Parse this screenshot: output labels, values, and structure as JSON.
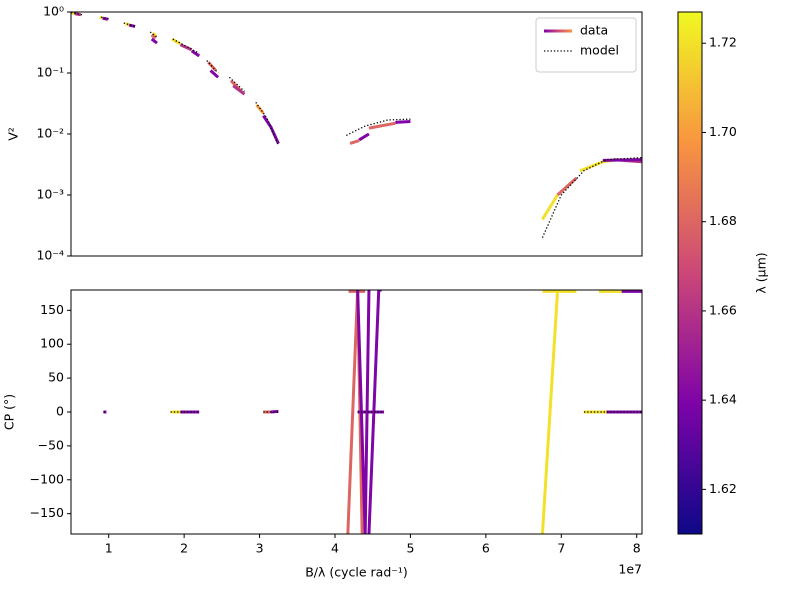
{
  "chart_data": [
    {
      "type": "line",
      "ylabel": "V²",
      "log_y": true,
      "legend": "upper right",
      "xlim": [
        0.5,
        8.07
      ],
      "ylim": [
        0.0001,
        1
      ],
      "yticks": [
        {
          "value": 0.0001,
          "label": "10⁻⁴"
        },
        {
          "value": 0.001,
          "label": "10⁻³"
        },
        {
          "value": 0.01,
          "label": "10⁻²"
        },
        {
          "value": 0.1,
          "label": "10⁻¹"
        },
        {
          "value": 1,
          "label": "10⁰"
        }
      ],
      "series": [
        {
          "name": "data",
          "linestyle": "solid",
          "segments": [
            {
              "wavelength": 1.72,
              "x": [
                0.5,
                0.55
              ],
              "values": [
                0.97,
                0.95
              ]
            },
            {
              "wavelength": 1.66,
              "x": [
                0.55,
                0.63
              ],
              "values": [
                0.94,
                0.9
              ]
            },
            {
              "wavelength": 1.72,
              "x": [
                0.88,
                0.92
              ],
              "values": [
                0.82,
                0.8
              ]
            },
            {
              "wavelength": 1.64,
              "x": [
                0.92,
                0.99
              ],
              "values": [
                0.79,
                0.76
              ]
            },
            {
              "wavelength": 1.72,
              "x": [
                1.22,
                1.27
              ],
              "values": [
                0.64,
                0.62
              ]
            },
            {
              "wavelength": 1.64,
              "x": [
                1.27,
                1.35
              ],
              "values": [
                0.61,
                0.58
              ]
            },
            {
              "wavelength": 1.72,
              "x": [
                1.58,
                1.63
              ],
              "values": [
                0.45,
                0.4
              ]
            },
            {
              "wavelength": 1.68,
              "x": [
                1.57,
                1.62
              ],
              "values": [
                0.42,
                0.37
              ]
            },
            {
              "wavelength": 1.64,
              "x": [
                1.57,
                1.64
              ],
              "values": [
                0.36,
                0.31
              ]
            },
            {
              "wavelength": 1.72,
              "x": [
                1.84,
                1.95
              ],
              "values": [
                0.36,
                0.3
              ]
            },
            {
              "wavelength": 1.66,
              "x": [
                1.95,
                2.1
              ],
              "values": [
                0.29,
                0.24
              ]
            },
            {
              "wavelength": 1.64,
              "x": [
                2.1,
                2.2
              ],
              "values": [
                0.23,
                0.19
              ]
            },
            {
              "wavelength": 1.68,
              "x": [
                2.32,
                2.42
              ],
              "values": [
                0.15,
                0.11
              ]
            },
            {
              "wavelength": 1.64,
              "x": [
                2.35,
                2.45
              ],
              "values": [
                0.11,
                0.085
              ]
            },
            {
              "wavelength": 1.68,
              "x": [
                2.62,
                2.77
              ],
              "values": [
                0.075,
                0.048
              ]
            },
            {
              "wavelength": 1.66,
              "x": [
                2.65,
                2.8
              ],
              "values": [
                0.062,
                0.045
              ]
            },
            {
              "wavelength": 1.7,
              "x": [
                2.96,
                3.05
              ],
              "values": [
                0.03,
                0.022
              ]
            },
            {
              "wavelength": 1.64,
              "x": [
                3.05,
                3.15,
                3.25
              ],
              "values": [
                0.02,
                0.013,
                0.007
              ]
            },
            {
              "wavelength": 1.68,
              "x": [
                4.2,
                4.32
              ],
              "values": [
                0.007,
                0.0078
              ]
            },
            {
              "wavelength": 1.64,
              "x": [
                4.32,
                4.45
              ],
              "values": [
                0.008,
                0.01
              ]
            },
            {
              "wavelength": 1.68,
              "x": [
                4.45,
                4.8
              ],
              "values": [
                0.0125,
                0.015
              ]
            },
            {
              "wavelength": 1.64,
              "x": [
                4.8,
                5.0
              ],
              "values": [
                0.0155,
                0.016
              ]
            },
            {
              "wavelength": 1.72,
              "x": [
                6.75,
                6.95
              ],
              "values": [
                0.0004,
                0.001
              ]
            },
            {
              "wavelength": 1.68,
              "x": [
                6.95,
                7.2
              ],
              "values": [
                0.001,
                0.0019
              ]
            },
            {
              "wavelength": 1.72,
              "x": [
                7.25,
                7.55,
                7.75
              ],
              "values": [
                0.0025,
                0.0035,
                0.0038
              ]
            },
            {
              "wavelength": 1.66,
              "x": [
                7.7,
                8.07
              ],
              "values": [
                0.0038,
                0.0035
              ]
            },
            {
              "wavelength": 1.64,
              "x": [
                7.55,
                8.07
              ],
              "values": [
                0.0037,
                0.0038
              ]
            }
          ]
        },
        {
          "name": "model",
          "color": "#000000",
          "linestyle": "dotted",
          "segments": [
            {
              "x": [
                0.5,
                0.65
              ],
              "values": [
                0.98,
                0.9
              ]
            },
            {
              "x": [
                0.9,
                1.0
              ],
              "values": [
                0.82,
                0.77
              ]
            },
            {
              "x": [
                1.2,
                1.35
              ],
              "values": [
                0.66,
                0.58
              ]
            },
            {
              "x": [
                1.55,
                1.65
              ],
              "values": [
                0.47,
                0.38
              ]
            },
            {
              "x": [
                1.85,
                2.2
              ],
              "values": [
                0.36,
                0.21
              ]
            },
            {
              "x": [
                2.3,
                2.45
              ],
              "values": [
                0.16,
                0.1
              ]
            },
            {
              "x": [
                2.6,
                2.8
              ],
              "values": [
                0.085,
                0.05
              ]
            },
            {
              "x": [
                2.95,
                3.1,
                3.25
              ],
              "values": [
                0.033,
                0.018,
                0.0065
              ]
            },
            {
              "x": [
                4.15,
                4.4,
                4.7,
                5.0
              ],
              "values": [
                0.0095,
                0.0135,
                0.017,
                0.0175
              ]
            },
            {
              "x": [
                6.75,
                7.0,
                7.3,
                7.6,
                8.07
              ],
              "values": [
                0.0002,
                0.001,
                0.0025,
                0.0038,
                0.0041
              ]
            }
          ]
        }
      ]
    },
    {
      "type": "line",
      "ylabel": "CP (°)",
      "xlabel": "B/λ (cycle rad⁻¹)",
      "x_offset_label": "1e7",
      "xlim": [
        0.5,
        8.07
      ],
      "ylim": [
        -180,
        180
      ],
      "xticks": [
        1,
        2,
        3,
        4,
        5,
        6,
        7,
        8
      ],
      "yticks": [
        {
          "value": -150,
          "label": "−150"
        },
        {
          "value": -100,
          "label": "−100"
        },
        {
          "value": -50,
          "label": "−50"
        },
        0,
        50,
        100,
        150
      ],
      "series": [
        {
          "name": "data",
          "linestyle": "solid",
          "segments": [
            {
              "wavelength": 1.64,
              "x": [
                0.93,
                0.97
              ],
              "values": [
                0,
                0
              ]
            },
            {
              "wavelength": 1.72,
              "x": [
                1.82,
                1.95
              ],
              "values": [
                0,
                0
              ]
            },
            {
              "wavelength": 1.64,
              "x": [
                1.95,
                2.2
              ],
              "values": [
                0,
                0
              ]
            },
            {
              "wavelength": 1.68,
              "x": [
                3.05,
                3.15
              ],
              "values": [
                0,
                0
              ]
            },
            {
              "wavelength": 1.64,
              "x": [
                3.15,
                3.25
              ],
              "values": [
                0,
                1
              ]
            },
            {
              "wavelength": 1.68,
              "x": [
                4.18,
                4.4
              ],
              "values": [
                178,
                178
              ]
            },
            {
              "wavelength": 1.68,
              "x": [
                4.17,
                4.3,
                4.36
              ],
              "values": [
                -180,
                180,
                -180
              ]
            },
            {
              "wavelength": 1.64,
              "x": [
                4.3,
                4.4,
                4.45
              ],
              "values": [
                180,
                -180,
                180
              ]
            },
            {
              "wavelength": 1.64,
              "x": [
                4.45,
                4.58,
                4.62
              ],
              "values": [
                -180,
                180,
                180
              ]
            },
            {
              "wavelength": 1.64,
              "x": [
                4.3,
                4.65
              ],
              "values": [
                0,
                0
              ]
            },
            {
              "wavelength": 1.72,
              "x": [
                6.75,
                6.95
              ],
              "values": [
                -180,
                178
              ]
            },
            {
              "wavelength": 1.72,
              "x": [
                6.75,
                7.2
              ],
              "values": [
                178,
                178
              ]
            },
            {
              "wavelength": 1.72,
              "x": [
                7.5,
                7.8
              ],
              "values": [
                178,
                178
              ]
            },
            {
              "wavelength": 1.64,
              "x": [
                7.8,
                8.07
              ],
              "values": [
                178,
                178
              ]
            },
            {
              "wavelength": 1.72,
              "x": [
                7.3,
                7.6
              ],
              "values": [
                0,
                0
              ]
            },
            {
              "wavelength": 1.64,
              "x": [
                7.6,
                8.07
              ],
              "values": [
                0,
                0
              ]
            }
          ]
        },
        {
          "name": "model",
          "color": "#000000",
          "linestyle": "dotted",
          "segments": [
            {
              "x": [
                0.93,
                0.97
              ],
              "values": [
                0,
                0
              ]
            },
            {
              "x": [
                1.82,
                2.2
              ],
              "values": [
                0,
                0
              ]
            },
            {
              "x": [
                3.05,
                3.25
              ],
              "values": [
                0,
                0
              ]
            },
            {
              "x": [
                4.3,
                4.65
              ],
              "values": [
                0,
                0
              ]
            },
            {
              "x": [
                7.3,
                8.07
              ],
              "values": [
                0,
                0
              ]
            }
          ]
        }
      ]
    }
  ],
  "colorbar": {
    "label": "λ (μm)",
    "colormap": "plasma",
    "clim": [
      1.61,
      1.727
    ],
    "ticks": [
      1.62,
      1.64,
      1.66,
      1.68,
      {
        "value": 1.7,
        "label": "1.70"
      },
      1.72
    ]
  }
}
